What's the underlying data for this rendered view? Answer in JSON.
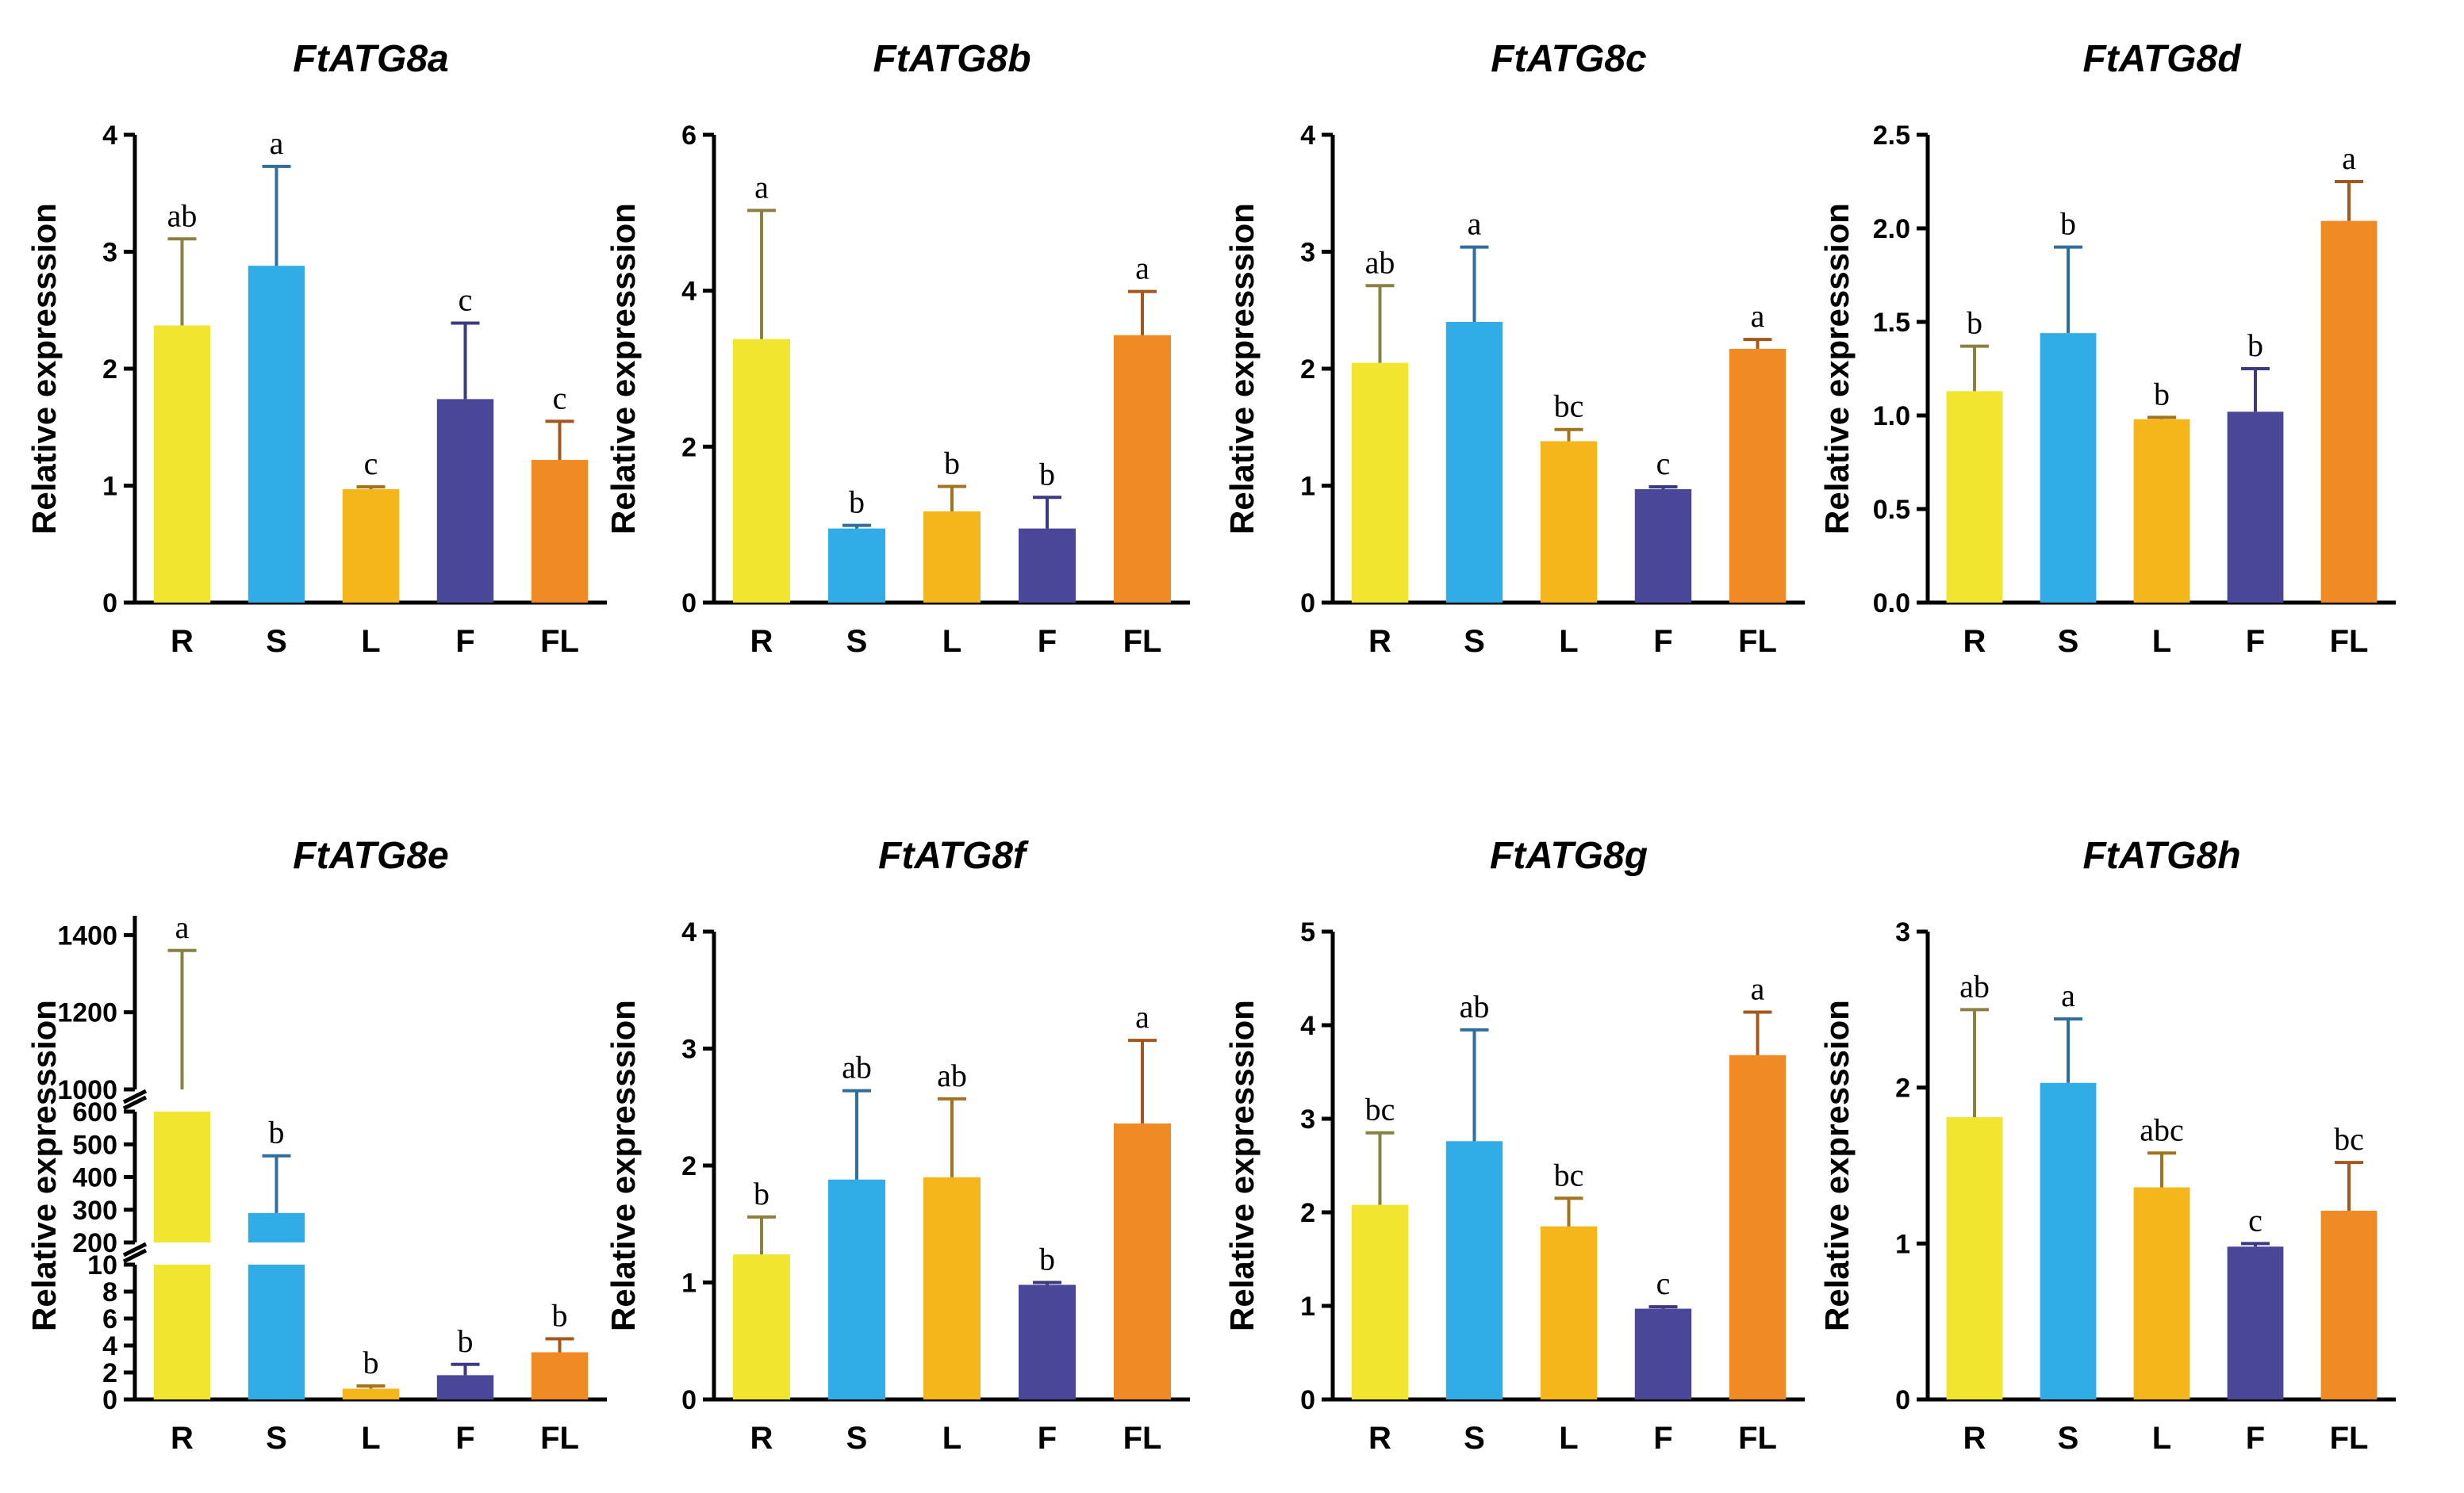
{
  "colors": {
    "R": "#f1e530",
    "S": "#30ace6",
    "L": "#f5b61c",
    "F": "#4a4799",
    "FL": "#f08a24",
    "err_R": "#8a8040",
    "err_S": "#2f6e9e",
    "err_L": "#a2731e",
    "err_F": "#3a3a80",
    "err_FL": "#a2581c"
  },
  "chart_data": [
    {
      "type": "bar",
      "title": "FtATG8a",
      "ylabel": "Relative expresssion",
      "categories": [
        "R",
        "S",
        "L",
        "F",
        "FL"
      ],
      "values": [
        2.37,
        2.88,
        0.97,
        1.74,
        1.22
      ],
      "errors": [
        0.74,
        0.85,
        0.02,
        0.65,
        0.33
      ],
      "labels": [
        "ab",
        "a",
        "c",
        "c",
        "c"
      ],
      "ylim": [
        0,
        4
      ],
      "yticks": [
        "0",
        "1",
        "2",
        "3",
        "4"
      ]
    },
    {
      "type": "bar",
      "title": "FtATG8b",
      "ylabel": "Relative expresssion",
      "categories": [
        "R",
        "S",
        "L",
        "F",
        "FL"
      ],
      "values": [
        3.38,
        0.95,
        1.17,
        0.95,
        3.43
      ],
      "errors": [
        1.65,
        0.04,
        0.32,
        0.4,
        0.56
      ],
      "labels": [
        "a",
        "b",
        "b",
        "b",
        "a"
      ],
      "ylim": [
        0,
        6
      ],
      "yticks": [
        "0",
        "2",
        "4",
        "6"
      ]
    },
    {
      "type": "bar",
      "title": "FtATG8c",
      "ylabel": "Relative expresssion",
      "categories": [
        "R",
        "S",
        "L",
        "F",
        "FL"
      ],
      "values": [
        2.05,
        2.4,
        1.38,
        0.97,
        2.17
      ],
      "errors": [
        0.66,
        0.64,
        0.1,
        0.02,
        0.08
      ],
      "labels": [
        "ab",
        "a",
        "bc",
        "c",
        "a"
      ],
      "ylim": [
        0,
        4
      ],
      "yticks": [
        "0",
        "1",
        "2",
        "3",
        "4"
      ]
    },
    {
      "type": "bar",
      "title": "FtATG8d",
      "ylabel": "Relative expresssion",
      "categories": [
        "R",
        "S",
        "L",
        "F",
        "FL"
      ],
      "values": [
        1.13,
        1.44,
        0.98,
        1.02,
        2.04
      ],
      "errors": [
        0.24,
        0.46,
        0.01,
        0.23,
        0.21
      ],
      "labels": [
        "b",
        "b",
        "b",
        "b",
        "a"
      ],
      "ylim": [
        0,
        2.5
      ],
      "yticks": [
        "0.0",
        "0.5",
        "1.0",
        "1.5",
        "2.0",
        "2.5"
      ]
    },
    {
      "type": "bar",
      "title": "FtATG8e",
      "ylabel": "Relative expresssion",
      "categories": [
        "R",
        "S",
        "L",
        "F",
        "FL"
      ],
      "values": [
        950,
        290,
        0.8,
        1.8,
        3.5
      ],
      "errors": [
        410,
        175,
        0.2,
        0.8,
        1.0
      ],
      "labels": [
        "a",
        "b",
        "b",
        "b",
        "b"
      ],
      "broken_axis": true,
      "ylim": [
        0,
        1450
      ],
      "yticks": [
        "0",
        "2",
        "4",
        "6",
        "8",
        "10",
        "200",
        "300",
        "400",
        "500",
        "600",
        "1000",
        "1200",
        "1400"
      ]
    },
    {
      "type": "bar",
      "title": "FtATG8f",
      "ylabel": "Relative expresssion",
      "categories": [
        "R",
        "S",
        "L",
        "F",
        "FL"
      ],
      "values": [
        1.24,
        1.88,
        1.9,
        0.98,
        2.36
      ],
      "errors": [
        0.32,
        0.76,
        0.67,
        0.02,
        0.71
      ],
      "labels": [
        "b",
        "ab",
        "ab",
        "b",
        "a"
      ],
      "ylim": [
        0,
        4
      ],
      "yticks": [
        "0",
        "1",
        "2",
        "3",
        "4"
      ]
    },
    {
      "type": "bar",
      "title": "FtATG8g",
      "ylabel": "Relative expresssion",
      "categories": [
        "R",
        "S",
        "L",
        "F",
        "FL"
      ],
      "values": [
        2.08,
        2.76,
        1.85,
        0.97,
        3.68
      ],
      "errors": [
        0.77,
        1.19,
        0.3,
        0.02,
        0.46
      ],
      "labels": [
        "bc",
        "ab",
        "bc",
        "c",
        "a"
      ],
      "ylim": [
        0,
        5
      ],
      "yticks": [
        "0",
        "1",
        "2",
        "3",
        "4",
        "5"
      ]
    },
    {
      "type": "bar",
      "title": "FtATG8h",
      "ylabel": "Relative expresssion",
      "categories": [
        "R",
        "S",
        "L",
        "F",
        "FL"
      ],
      "values": [
        1.81,
        2.03,
        1.36,
        0.98,
        1.21
      ],
      "errors": [
        0.69,
        0.41,
        0.22,
        0.02,
        0.31
      ],
      "labels": [
        "ab",
        "a",
        "abc",
        "c",
        "bc"
      ],
      "ylim": [
        0,
        3
      ],
      "yticks": [
        "0",
        "1",
        "2",
        "3"
      ]
    }
  ]
}
